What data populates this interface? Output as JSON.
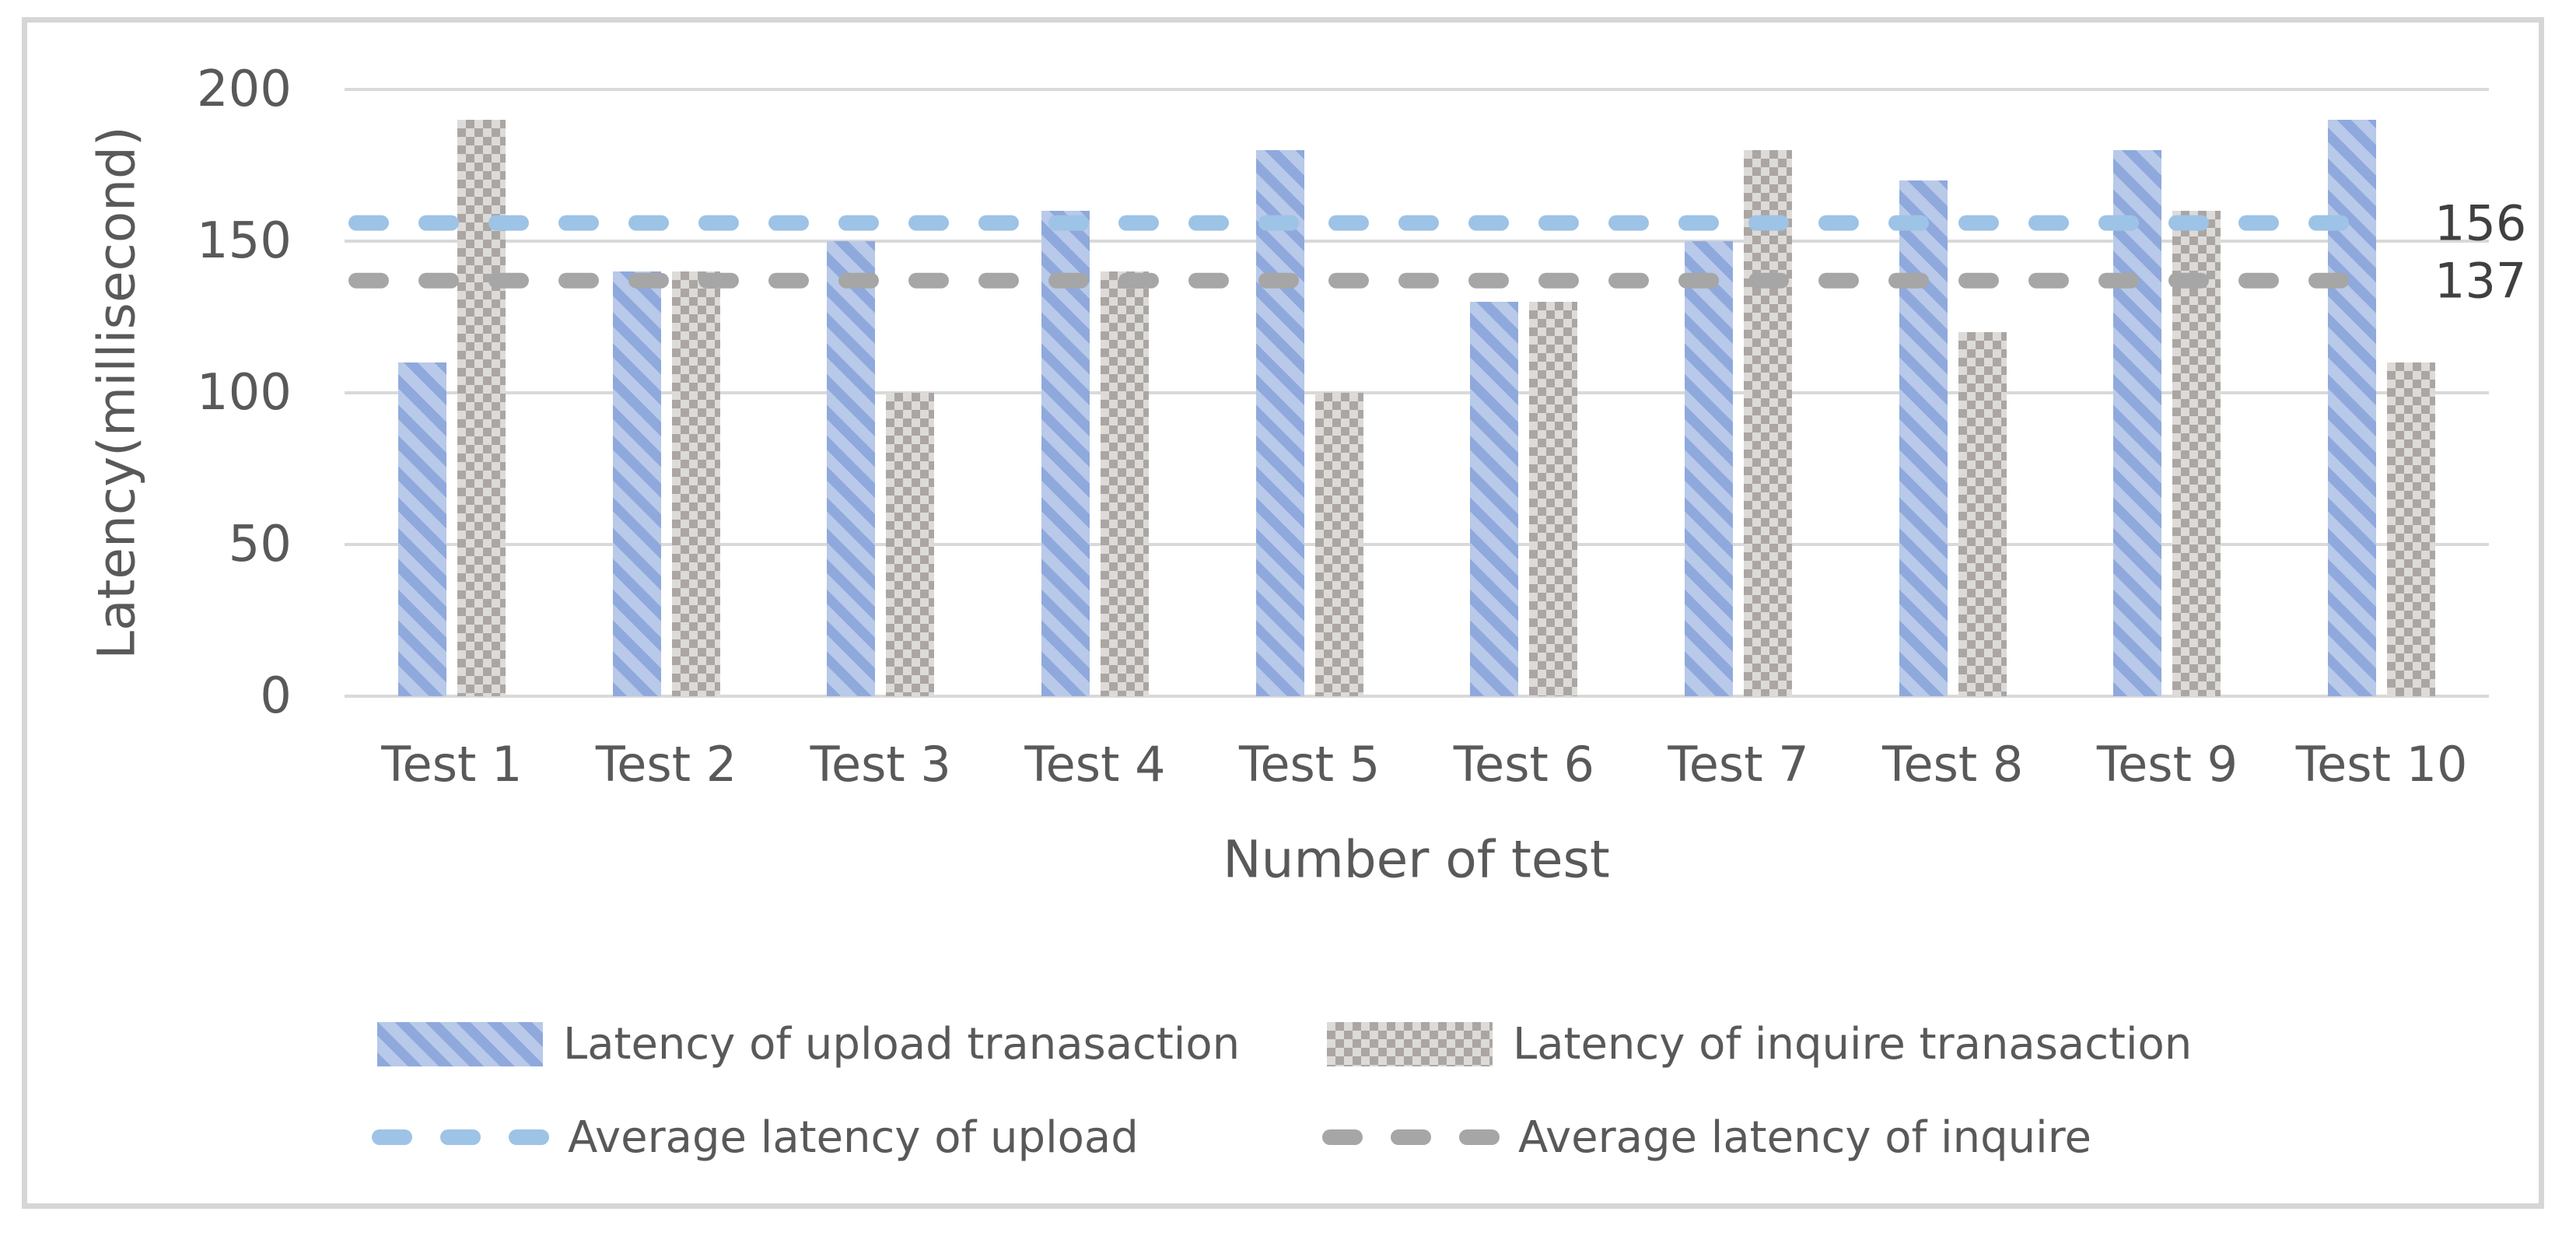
{
  "colors": {
    "upload_base": "#b8c9e9",
    "upload_stripe": "#8fa9dc",
    "inquire_light": "#dcdbd8",
    "inquire_dark": "#aba6a3",
    "avg_upload": "#9dc3e6",
    "avg_inquire": "#a6a6a6",
    "gridline": "#d9d9d9",
    "text": "#595959",
    "value_label": "#404040",
    "frame_border": "#d6d6d6",
    "background": "#ffffff"
  },
  "chart_data": {
    "type": "bar",
    "title": "",
    "categories": [
      "Test 1",
      "Test 2",
      "Test 3",
      "Test 4",
      "Test 5",
      "Test 6",
      "Test 7",
      "Test 8",
      "Test 9",
      "Test 10"
    ],
    "series": [
      {
        "name": "Latency of upload tranasaction",
        "pattern": "diagonal-stripes-blue",
        "values": [
          110,
          140,
          150,
          160,
          180,
          130,
          150,
          170,
          180,
          190
        ]
      },
      {
        "name": "Latency of inquire tranasaction",
        "pattern": "checkerboard-gray",
        "values": [
          190,
          140,
          100,
          140,
          100,
          130,
          180,
          120,
          160,
          110
        ]
      }
    ],
    "average_lines": [
      {
        "name": "Average latency of upload",
        "value": 156,
        "label": "156",
        "style": "dashed-blue"
      },
      {
        "name": "Average latency of inquire",
        "value": 137,
        "label": "137",
        "style": "dashed-gray"
      }
    ],
    "xlabel": "Number of test",
    "ylabel": "Latency(millisecond)",
    "ylim": [
      0,
      200
    ],
    "yticks": [
      0,
      50,
      100,
      150,
      200
    ],
    "grid": true,
    "legend_position": "bottom"
  }
}
